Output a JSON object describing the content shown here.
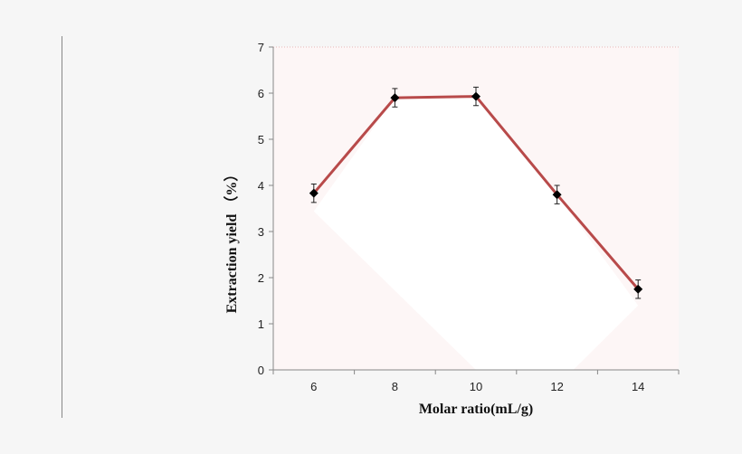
{
  "chart_data": {
    "type": "line",
    "title": "",
    "xlabel": "Molar ratio(mL/g)",
    "ylabel": "Extraction  yield （%）",
    "x": [
      6,
      8,
      10,
      12,
      14
    ],
    "categories": [
      "6",
      "8",
      "10",
      "12",
      "14"
    ],
    "series": [
      {
        "name": "Extraction yield",
        "values": [
          3.83,
          5.9,
          5.93,
          3.8,
          1.75
        ],
        "error": [
          0.2,
          0.2,
          0.2,
          0.2,
          0.2
        ],
        "color": "#b84a4a",
        "marker": "diamond",
        "marker_color": "#000000"
      }
    ],
    "yticks": [
      "0",
      "1",
      "2",
      "3",
      "4",
      "5",
      "6",
      "7"
    ],
    "ylim": [
      0,
      7
    ],
    "xlim": [
      5,
      15
    ],
    "grid": false,
    "legend": "none",
    "plot_background": "#fdf6f6"
  }
}
